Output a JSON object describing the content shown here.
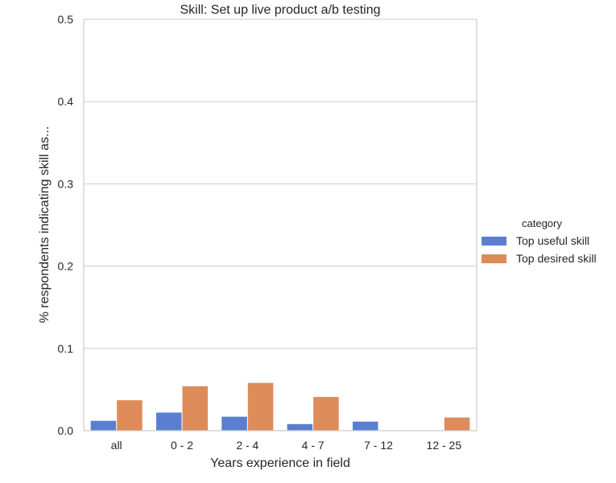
{
  "chart_data": {
    "type": "bar",
    "title": "Skill: Set up live product a/b testing",
    "xlabel": "Years experience in field",
    "ylabel": "% respondents indicating skill as...",
    "categories": [
      "all",
      "0 - 2",
      "2 - 4",
      "4 - 7",
      "7 - 12",
      "12 - 25"
    ],
    "ylim": [
      0,
      0.5
    ],
    "yticks": [
      "0.0",
      "0.1",
      "0.2",
      "0.3",
      "0.4",
      "0.5"
    ],
    "grid": "horizontal",
    "legend": {
      "title": "category",
      "placement": "right"
    },
    "series": [
      {
        "name": "Top useful skill",
        "color": "#5a7fd0",
        "values": [
          0.012,
          0.022,
          0.017,
          0.008,
          0.011,
          0.0
        ]
      },
      {
        "name": "Top desired skill",
        "color": "#de8b5a",
        "values": [
          0.037,
          0.054,
          0.058,
          0.041,
          0.0,
          0.016
        ]
      }
    ]
  }
}
